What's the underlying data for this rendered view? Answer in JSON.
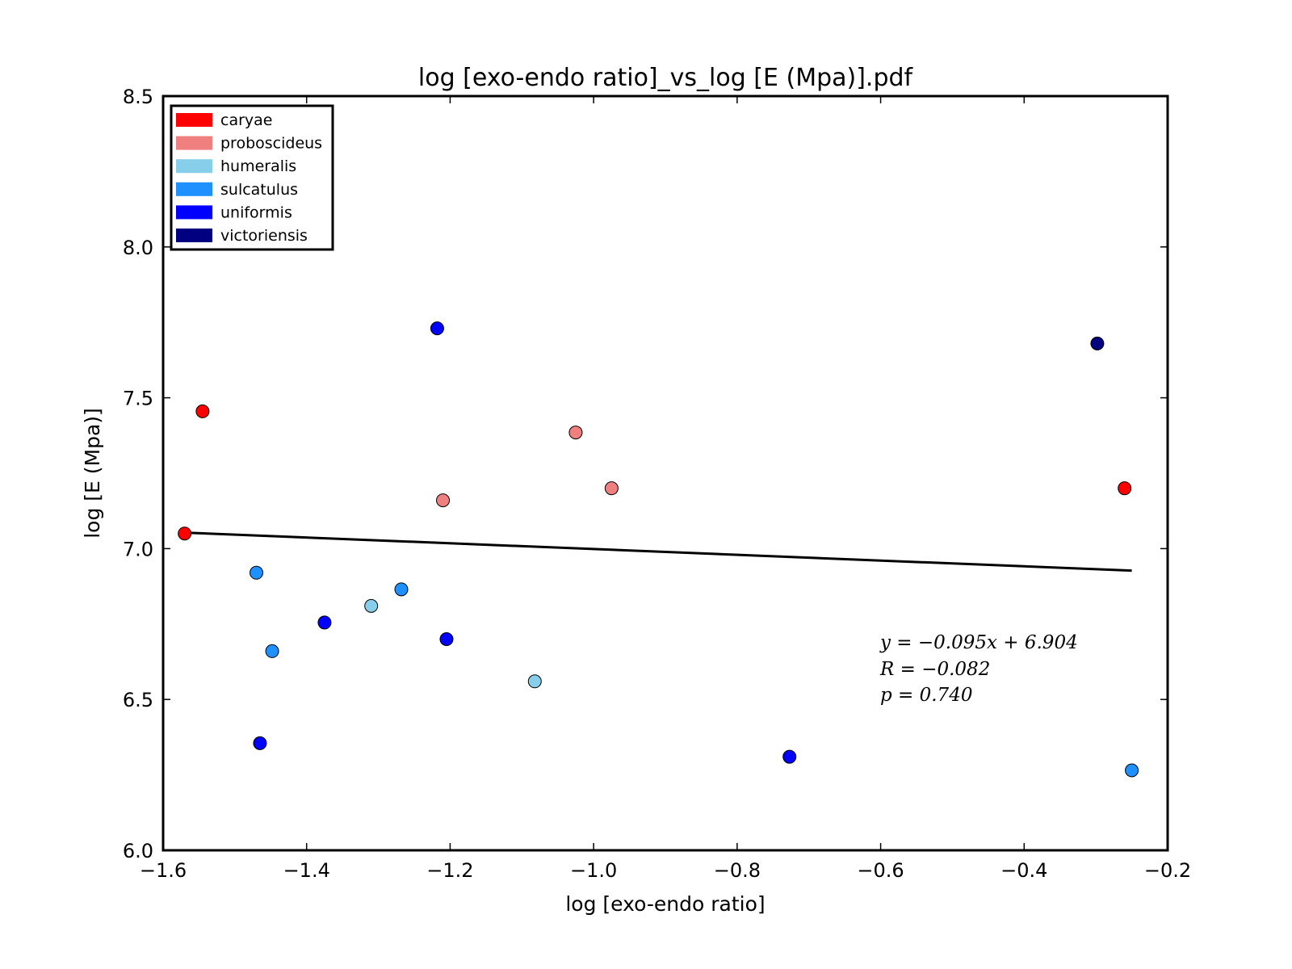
{
  "chart_data": {
    "type": "scatter",
    "title": "log [exo-endo ratio]_vs_log [E (Mpa)].pdf",
    "xlabel": "log [exo-endo ratio]",
    "ylabel": "log [E (Mpa)]",
    "xlim": [
      -1.6,
      -0.2
    ],
    "ylim": [
      6.0,
      8.5
    ],
    "xticks": [
      -1.6,
      -1.4,
      -1.2,
      -1.0,
      -0.8,
      -0.6,
      -0.4,
      -0.2
    ],
    "xtick_labels": [
      "−1.6",
      "−1.4",
      "−1.2",
      "−1.0",
      "−0.8",
      "−0.6",
      "−0.4",
      "−0.2"
    ],
    "yticks": [
      6.0,
      6.5,
      7.0,
      7.5,
      8.0,
      8.5
    ],
    "ytick_labels": [
      "6.0",
      "6.5",
      "7.0",
      "7.5",
      "8.0",
      "8.5"
    ],
    "grid": false,
    "legend_position": "top-left",
    "series": [
      {
        "name": "caryae",
        "color": "#ff0000",
        "points": [
          [
            -1.57,
            7.05
          ],
          [
            -1.545,
            7.455
          ],
          [
            -0.26,
            7.2
          ]
        ]
      },
      {
        "name": "proboscideus",
        "color": "#f08080",
        "points": [
          [
            -1.21,
            7.16
          ],
          [
            -1.025,
            7.385
          ],
          [
            -0.975,
            7.2
          ]
        ]
      },
      {
        "name": "humeralis",
        "color": "#87ceeb",
        "points": [
          [
            -1.31,
            6.81
          ],
          [
            -1.082,
            6.56
          ]
        ]
      },
      {
        "name": "sulcatulus",
        "color": "#1e90ff",
        "points": [
          [
            -1.47,
            6.92
          ],
          [
            -1.268,
            6.865
          ],
          [
            -1.448,
            6.66
          ],
          [
            -0.25,
            6.265
          ]
        ]
      },
      {
        "name": "uniformis",
        "color": "#0000ff",
        "points": [
          [
            -1.218,
            7.73
          ],
          [
            -1.375,
            6.755
          ],
          [
            -1.205,
            6.7
          ],
          [
            -1.465,
            6.355
          ],
          [
            -0.727,
            6.31
          ]
        ]
      },
      {
        "name": "victoriensis",
        "color": "#000080",
        "points": [
          [
            -0.298,
            7.68
          ]
        ]
      }
    ],
    "fit_line": {
      "x": [
        -1.57,
        -0.25
      ],
      "y": [
        7.053,
        6.927
      ],
      "color": "#000000"
    },
    "annotation": {
      "line1": "y = −0.095x + 6.904",
      "line2": "R = −0.082",
      "line3": "p = 0.740"
    }
  }
}
